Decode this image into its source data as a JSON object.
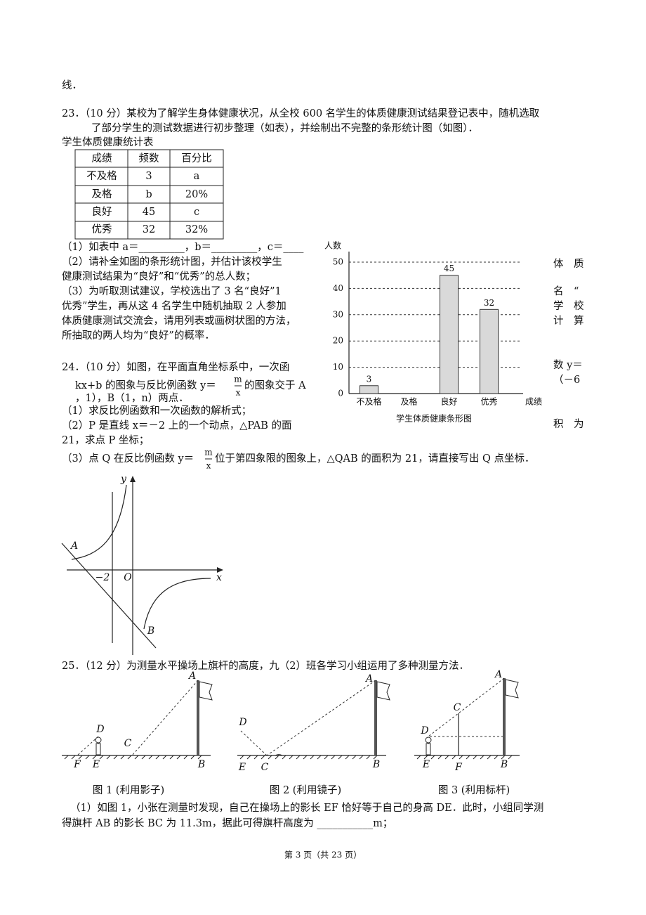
{
  "page": {
    "top_line": "线．",
    "q23": {
      "stem": [
        "23．（10 分）某校为了解学生身体健康状况，从全校 600 名学生的体质健康测试结果登记表中，随机选取",
        "了部分学生的测试数据进行初步整理（如表），并绘制出不完整的条形统计图（如图）．"
      ],
      "table_caption": "学生体质健康统计表",
      "table": {
        "header": [
          "成绩",
          "频数",
          "百分比"
        ],
        "rows": [
          [
            "不及格",
            "3",
            "a"
          ],
          [
            "及格",
            "b",
            "20%"
          ],
          [
            "良好",
            "45",
            "c"
          ],
          [
            "优秀",
            "32",
            "32%"
          ]
        ]
      },
      "questions": [
        "（1）如表中 a＝_________，b＝_________，c＝____",
        "（2）请补全如图的条形统计图，并估计该校学生",
        "健康测试结果为“良好”和“优秀”的总人数；",
        "（3）为听取测试建议，学校选出了 3 名“良好”1",
        "优秀”学生，再从这 4 名学生中随机抽取 2 人参加",
        "体质健康测试交流会，请用列表或画树状图的方法，",
        "所抽取的两人均为“良好”的概率．"
      ],
      "overlap_fragments": [
        "体　质",
        "名　“",
        "学　校",
        "计　算",
        "数 y＝",
        "（－6",
        "积　为"
      ]
    },
    "q24": {
      "line0": "24．（10 分）如图，在平面直角坐标系中，一次函",
      "line1_a": "kx+b 的图象与反比例函数 y＝",
      "frac_num": "m",
      "frac_den": "x",
      "line1_b": "的图象交于 A",
      "line2": "，1），B（1，n）两点．",
      "sub1": "（1）求反比例函数和一次函数的解析式；",
      "sub2": [
        "（2）P 是直线 x＝－2 上的一个动点，△PAB 的面",
        "21，求点 P 坐标；"
      ],
      "sub3_a": "（3）点 Q 在反比例函数 y＝",
      "sub3_b": "位于第四象限的图象上，△QAB 的面积为 21，请直接写出 Q 点坐标．",
      "graph_labels": {
        "y": "y",
        "x": "x",
        "A": "A",
        "O": "O",
        "minus2": "−2",
        "B": "B"
      }
    },
    "q25": {
      "stem": "25．（12 分）为测量水平操场上旗杆的高度，九（2）班各学习小组运用了多种测量方法．",
      "fig1": {
        "A": "A",
        "D": "D",
        "C": "C",
        "F": "F",
        "E": "E",
        "B": "B",
        "caption": "图 1 (利用影子)"
      },
      "fig2": {
        "A": "A",
        "D": "D",
        "E": "E",
        "C": "C",
        "B": "B",
        "caption": "图 2 (利用镜子)"
      },
      "fig3": {
        "A": "A",
        "C": "C",
        "D": "D",
        "E": "E",
        "F": "F",
        "B": "B",
        "caption": "图 3 (利用标杆)"
      },
      "sub1": [
        "（1）如图 1，小张在测量时发现，自己在操场上的影长 EF 恰好等于自己的身高 DE．此时，小组同学测",
        "得旗杆 AB 的影长 BC 为 11.3m，据此可得旗杆高度为 ___________m；"
      ]
    },
    "footer": "第 3 页（共 23 页）"
  },
  "chart_data": {
    "type": "bar",
    "title": "学生体质健康条形图",
    "x_label": "成绩",
    "y_label": "人数",
    "categories": [
      "不及格",
      "及格",
      "良好",
      "优秀"
    ],
    "values": [
      3,
      null,
      45,
      32
    ],
    "color": "#d9d9d9",
    "ylim": [
      0,
      50
    ],
    "yticks": [
      0,
      10,
      20,
      30,
      40,
      50
    ],
    "grid": true
  }
}
